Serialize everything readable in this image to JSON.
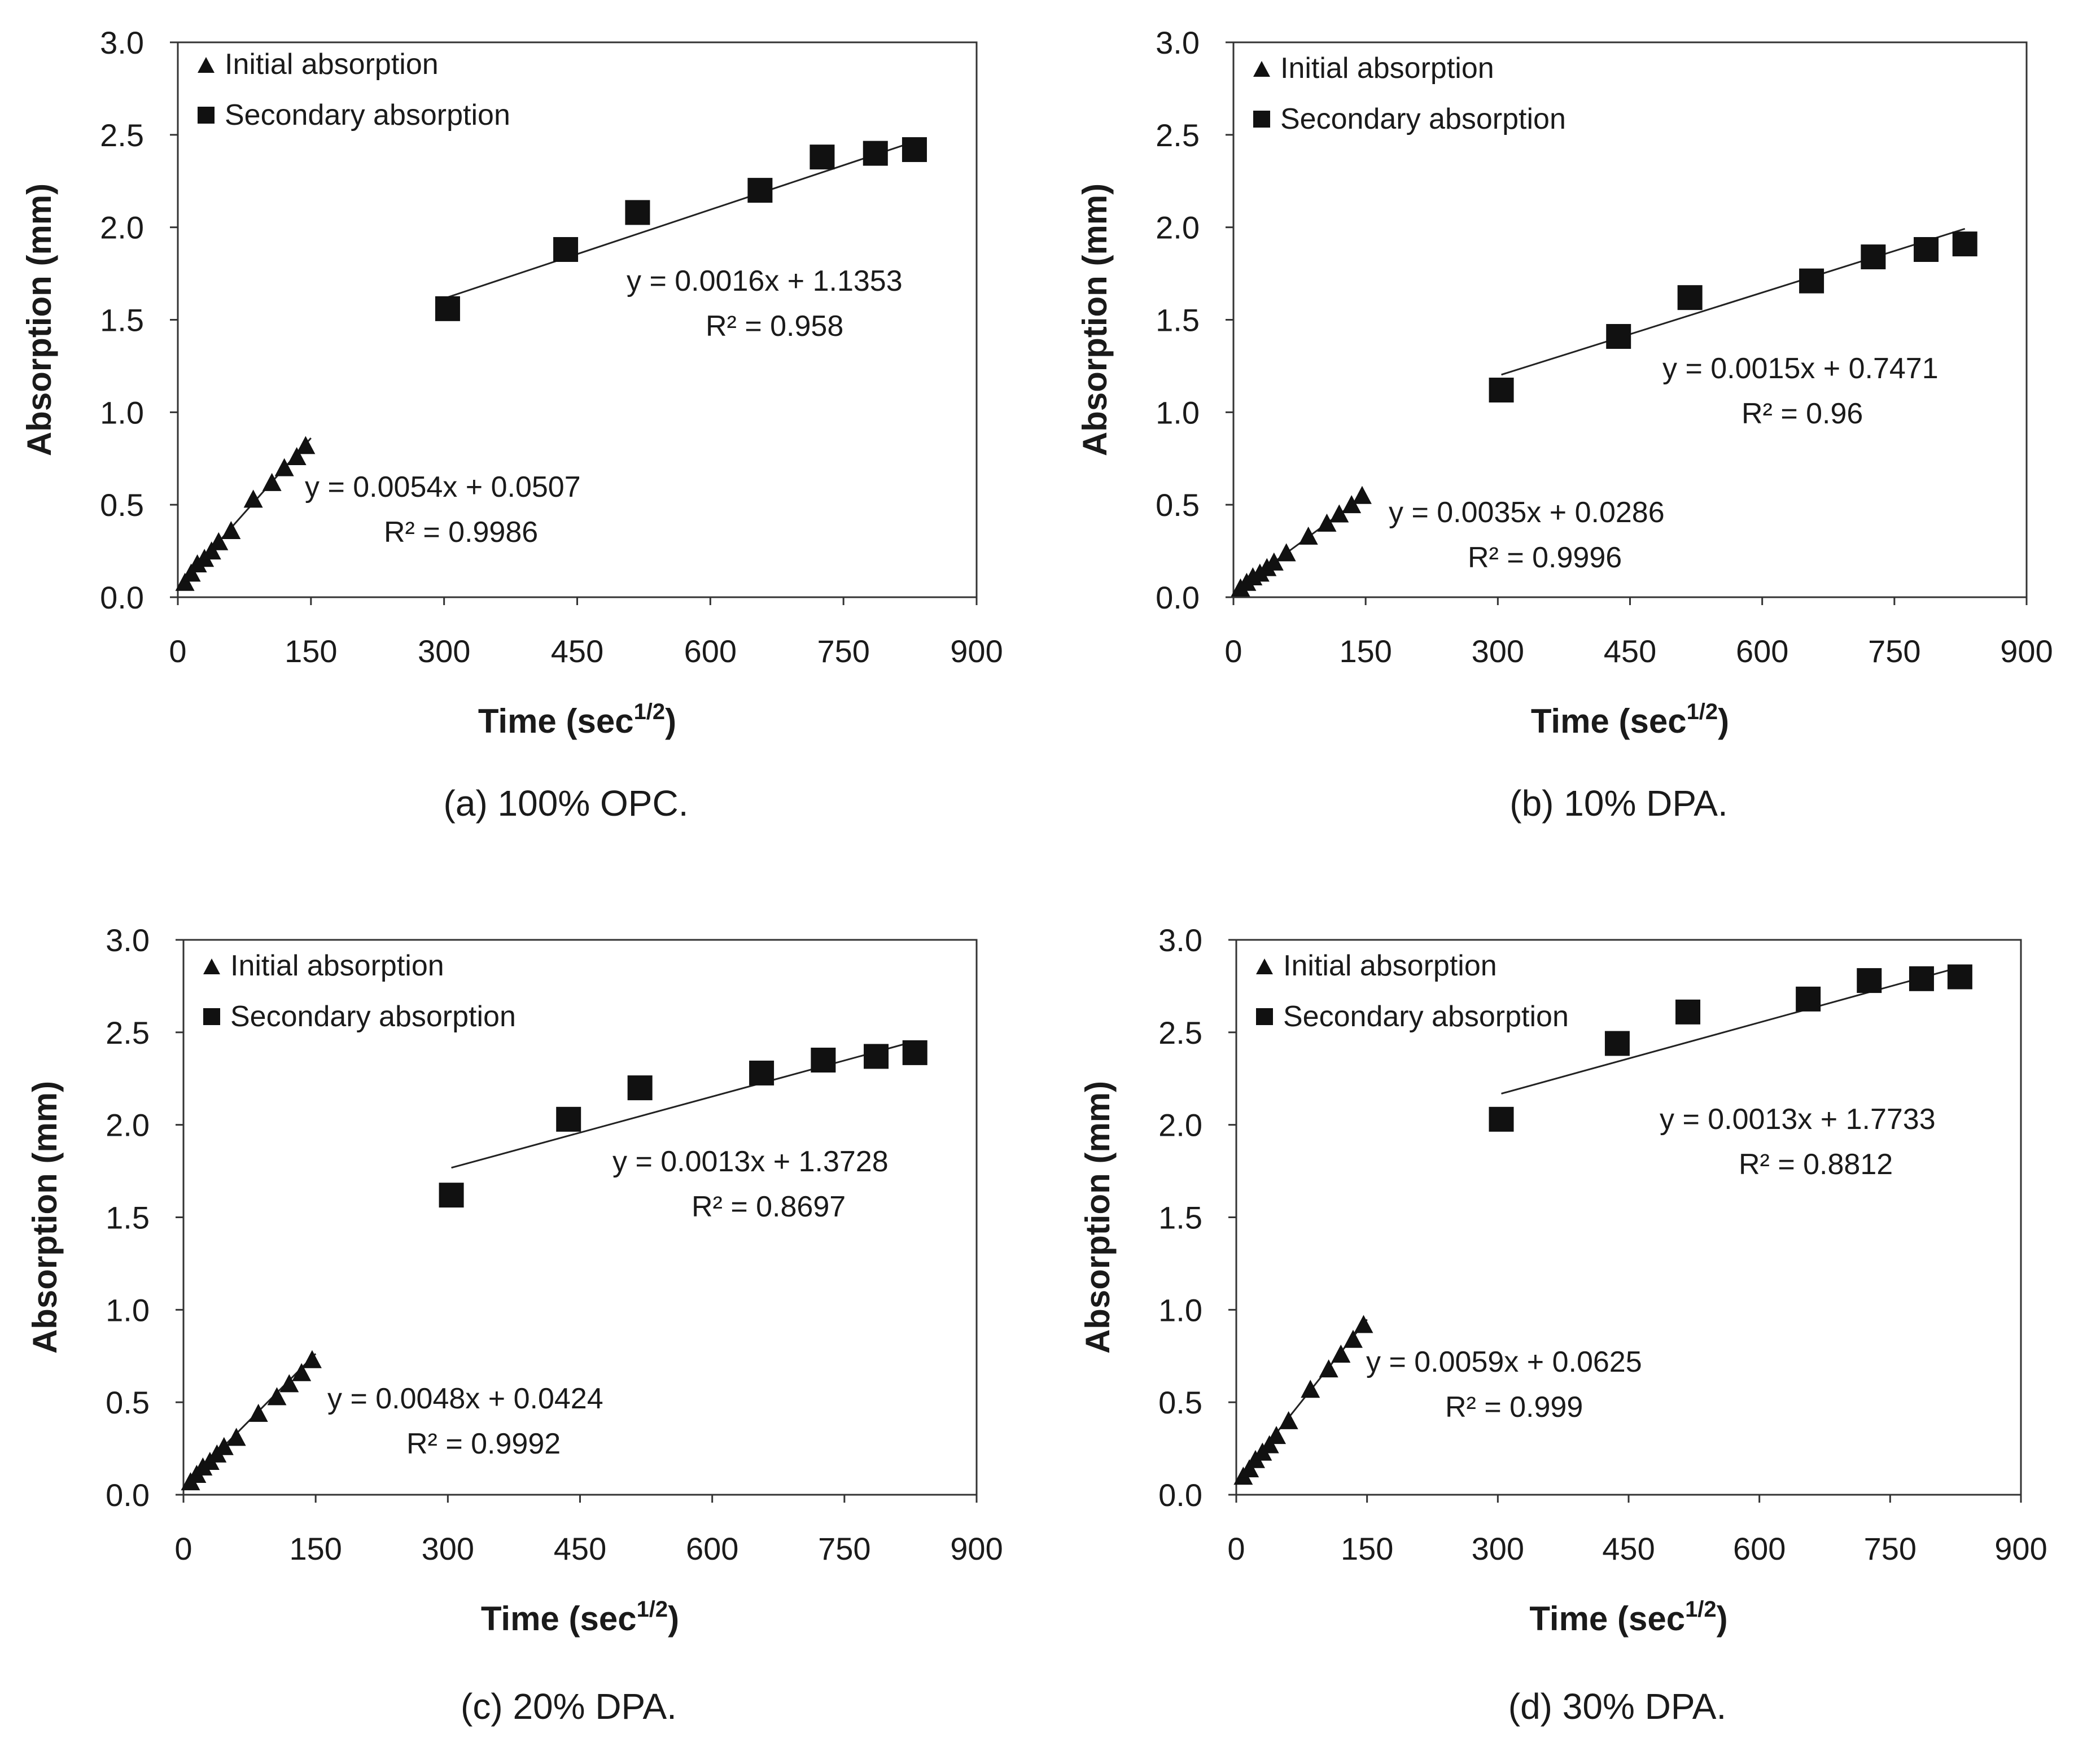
{
  "chart_data": [
    {
      "type": "scatter",
      "caption": "(a) 100% OPC.",
      "xlabel": "Time (sec",
      "xlabel_sup": "1/2",
      "xlabel_close": ")",
      "ylabel": "Absorption (mm)",
      "xlim": [
        0,
        900
      ],
      "ylim": [
        0,
        3.0
      ],
      "xticks": [
        "0",
        "150",
        "300",
        "450",
        "600",
        "750",
        "900"
      ],
      "yticks": [
        "0.0",
        "0.5",
        "1.0",
        "1.5",
        "2.0",
        "2.5",
        "3.0"
      ],
      "legend": [
        "Initial absorption",
        "Secondary absorption"
      ],
      "series": [
        {
          "name": "Initial absorption",
          "marker": "triangle",
          "x": [
            8,
            15,
            22,
            30,
            38,
            46,
            60,
            85,
            106,
            120,
            134,
            144
          ],
          "y": [
            0.08,
            0.13,
            0.18,
            0.21,
            0.25,
            0.3,
            0.36,
            0.53,
            0.62,
            0.7,
            0.76,
            0.82
          ],
          "trend": {
            "slope": 0.0054,
            "intercept": 0.0507,
            "x_range": [
              0,
              150
            ]
          },
          "equation": "y = 0.0054x + 0.0507",
          "r2": "R² = 0.9986"
        },
        {
          "name": "Secondary absorption",
          "marker": "square",
          "x": [
            304,
            437,
            518,
            656,
            726,
            786,
            830
          ],
          "y": [
            1.56,
            1.88,
            2.08,
            2.2,
            2.38,
            2.4,
            2.42
          ],
          "trend": {
            "slope": 0.0016,
            "intercept": 1.1353,
            "x_range": [
              304,
              830
            ]
          },
          "equation": "y = 0.0016x + 1.1353",
          "r2": "R² = 0.958"
        }
      ]
    },
    {
      "type": "scatter",
      "caption": "(b) 10% DPA.",
      "xlabel": "Time (sec",
      "xlabel_sup": "1/2",
      "xlabel_close": ")",
      "ylabel": "Absorption (mm)",
      "xlim": [
        0,
        900
      ],
      "ylim": [
        0,
        3.0
      ],
      "xticks": [
        "0",
        "150",
        "300",
        "450",
        "600",
        "750",
        "900"
      ],
      "yticks": [
        "0.0",
        "0.5",
        "1.0",
        "1.5",
        "2.0",
        "2.5",
        "3.0"
      ],
      "legend": [
        "Initial absorption",
        "Secondary absorption"
      ],
      "series": [
        {
          "name": "Initial absorption",
          "marker": "triangle",
          "x": [
            8,
            15,
            22,
            30,
            38,
            46,
            60,
            85,
            106,
            120,
            134,
            146
          ],
          "y": [
            0.05,
            0.08,
            0.11,
            0.13,
            0.16,
            0.19,
            0.24,
            0.33,
            0.4,
            0.45,
            0.5,
            0.55
          ],
          "trend": {
            "slope": 0.0035,
            "intercept": 0.0286,
            "x_range": [
              0,
              150
            ]
          },
          "equation": "y = 0.0035x + 0.0286",
          "r2": "R² = 0.9996"
        },
        {
          "name": "Secondary absorption",
          "marker": "square",
          "x": [
            304,
            437,
            518,
            656,
            726,
            786,
            830
          ],
          "y": [
            1.12,
            1.41,
            1.62,
            1.71,
            1.84,
            1.88,
            1.91
          ],
          "trend": {
            "slope": 0.0015,
            "intercept": 0.7471,
            "x_range": [
              304,
              830
            ]
          },
          "equation": "y = 0.0015x + 0.7471",
          "r2": "R² = 0.96"
        }
      ]
    },
    {
      "type": "scatter",
      "caption": "(c) 20% DPA.",
      "xlabel": "Time (sec",
      "xlabel_sup": "1/2",
      "xlabel_close": ")",
      "ylabel": "Absorption (mm)",
      "xlim": [
        0,
        900
      ],
      "ylim": [
        0,
        3.0
      ],
      "xticks": [
        "0",
        "150",
        "300",
        "450",
        "600",
        "750",
        "900"
      ],
      "yticks": [
        "0.0",
        "0.5",
        "1.0",
        "1.5",
        "2.0",
        "2.5",
        "3.0"
      ],
      "legend": [
        "Initial absorption",
        "Secondary absorption"
      ],
      "series": [
        {
          "name": "Initial absorption",
          "marker": "triangle",
          "x": [
            8,
            15,
            22,
            30,
            38,
            46,
            60,
            85,
            106,
            120,
            134,
            146
          ],
          "y": [
            0.07,
            0.11,
            0.15,
            0.18,
            0.22,
            0.26,
            0.31,
            0.44,
            0.53,
            0.6,
            0.66,
            0.73
          ],
          "trend": {
            "slope": 0.0048,
            "intercept": 0.0424,
            "x_range": [
              0,
              150
            ]
          },
          "equation": "y = 0.0048x + 0.0424",
          "r2": "R² = 0.9992"
        },
        {
          "name": "Secondary absorption",
          "marker": "square",
          "x": [
            304,
            437,
            518,
            656,
            726,
            786,
            830
          ],
          "y": [
            1.62,
            2.03,
            2.2,
            2.28,
            2.35,
            2.37,
            2.39
          ],
          "trend": {
            "slope": 0.0013,
            "intercept": 1.3728,
            "x_range": [
              304,
              830
            ]
          },
          "equation": "y = 0.0013x + 1.3728",
          "r2": "R² = 0.8697"
        }
      ]
    },
    {
      "type": "scatter",
      "caption": "(d) 30% DPA.",
      "xlabel": "Time (sec",
      "xlabel_sup": "1/2",
      "xlabel_close": ")",
      "ylabel": "Absorption (mm)",
      "xlim": [
        0,
        900
      ],
      "ylim": [
        0,
        3.0
      ],
      "xticks": [
        "0",
        "150",
        "300",
        "450",
        "600",
        "750",
        "900"
      ],
      "yticks": [
        "0.0",
        "0.5",
        "1.0",
        "1.5",
        "2.0",
        "2.5",
        "3.0"
      ],
      "legend": [
        "Initial absorption",
        "Secondary absorption"
      ],
      "series": [
        {
          "name": "Initial absorption",
          "marker": "triangle",
          "x": [
            8,
            15,
            22,
            30,
            38,
            46,
            60,
            85,
            106,
            120,
            134,
            146
          ],
          "y": [
            0.1,
            0.14,
            0.19,
            0.23,
            0.27,
            0.32,
            0.4,
            0.57,
            0.68,
            0.76,
            0.84,
            0.92
          ],
          "trend": {
            "slope": 0.0059,
            "intercept": 0.0625,
            "x_range": [
              0,
              150
            ]
          },
          "equation": "y = 0.0059x + 0.0625",
          "r2": "R² = 0.999"
        },
        {
          "name": "Secondary absorption",
          "marker": "square",
          "x": [
            304,
            437,
            518,
            656,
            726,
            786,
            830
          ],
          "y": [
            2.03,
            2.44,
            2.61,
            2.68,
            2.78,
            2.79,
            2.8
          ],
          "trend": {
            "slope": 0.0013,
            "intercept": 1.7733,
            "x_range": [
              304,
              830
            ]
          },
          "equation": "y = 0.0013x + 1.7733",
          "r2": "R² = 0.8812"
        }
      ]
    }
  ]
}
